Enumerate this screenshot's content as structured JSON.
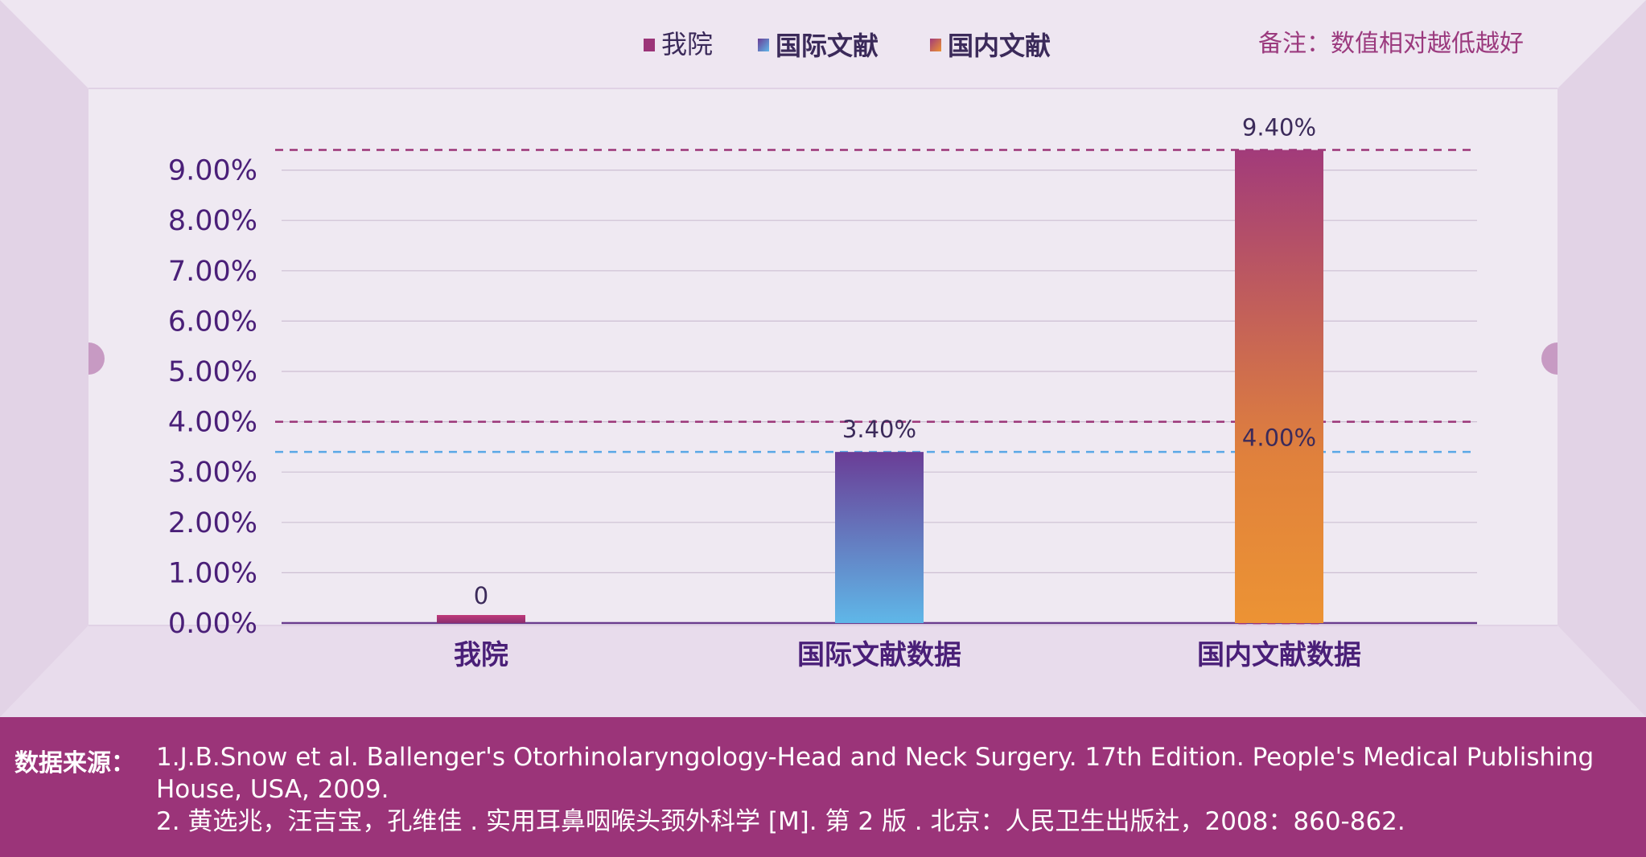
{
  "legend": {
    "items": [
      {
        "label": "我院",
        "color": "#9b3478"
      },
      {
        "label": "国际文献",
        "color": "#5b7fc6"
      },
      {
        "label": "国内文献",
        "color": "#e07a3a"
      }
    ]
  },
  "note": "备注：数值相对越低越好",
  "chart_data": {
    "type": "bar",
    "categories": [
      "我院",
      "国际文献数据",
      "国内文献数据"
    ],
    "values": [
      0,
      3.4,
      9.4
    ],
    "value_labels": [
      "0",
      "3.40%",
      "9.40%"
    ],
    "reference_label": "4.00%",
    "reference_value": 4.0,
    "y_ticks": [
      "0.00%",
      "1.00%",
      "2.00%",
      "3.00%",
      "4.00%",
      "5.00%",
      "6.00%",
      "7.00%",
      "8.00%",
      "9.00%"
    ],
    "ylim": [
      0,
      10
    ],
    "grid": true,
    "legend_position": "top"
  },
  "colors": {
    "bar1": [
      "#c0397a",
      "#8c2f6f"
    ],
    "bar2": [
      "#6a3d96",
      "#5fb7e8"
    ],
    "bar3": [
      "#a23b7a",
      "#ec9334"
    ],
    "footer_bg": "#9b3479"
  },
  "footer": {
    "title": "数据来源：",
    "lines": [
      "1.J.B.Snow et al. Ballenger's Otorhinolaryngology-Head and Neck Surgery. 17th Edition. People's Medical Publishing House, USA, 2009.",
      "2. 黄选兆，汪吉宝，孔维佳 . 实用耳鼻咽喉头颈外科学 [M]. 第 2 版 . 北京：人民卫生出版社，2008：860-862."
    ]
  }
}
